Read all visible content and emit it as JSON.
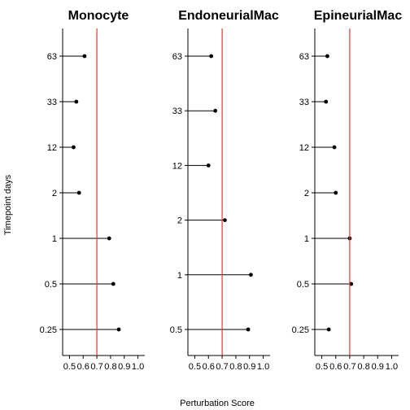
{
  "chart_data": {
    "type": "lollipop",
    "xlabel": "Perturbation Score",
    "ylabel": "Timepoint days",
    "xlim": [
      0.45,
      1.05
    ],
    "xticks": [
      0.5,
      0.6,
      0.7,
      0.8,
      0.9,
      1.0
    ],
    "xtick_labels": [
      "0.5",
      "0.6",
      "0.7",
      "0.8",
      "0.9",
      "1.0"
    ],
    "reference_line": 0.7,
    "reference_color": "#e8382f",
    "grid": false,
    "panels": [
      {
        "title": "Monocyte",
        "categories": [
          "0.25",
          "0.5",
          "1",
          "2",
          "12",
          "33",
          "63"
        ],
        "values": [
          0.86,
          0.82,
          0.79,
          0.57,
          0.53,
          0.55,
          0.61
        ]
      },
      {
        "title": "EndoneurialMac",
        "categories": [
          "0.5",
          "1",
          "2",
          "12",
          "33",
          "63"
        ],
        "values": [
          0.89,
          0.91,
          0.72,
          0.6,
          0.65,
          0.62
        ]
      },
      {
        "title": "EpineurialMac",
        "categories": [
          "0.25",
          "0.5",
          "1",
          "2",
          "12",
          "33",
          "63"
        ],
        "values": [
          0.55,
          0.71,
          0.7,
          0.6,
          0.59,
          0.53,
          0.54
        ]
      }
    ]
  }
}
